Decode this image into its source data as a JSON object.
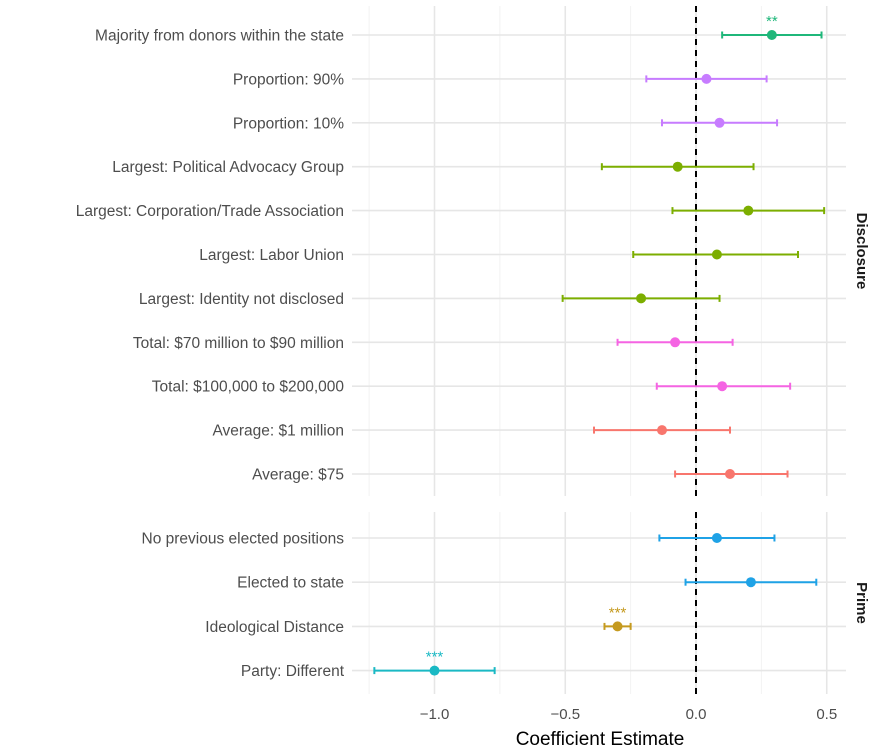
{
  "chart_data": {
    "type": "scatter",
    "subtype": "coefficient-plot",
    "xlabel": "Coefficient Estimate",
    "xlim": [
      -1.25,
      0.52
    ],
    "x_ticks": [
      -1.0,
      -0.5,
      0.0,
      0.5
    ],
    "x_tick_labels": [
      "−1.0",
      "−0.5",
      "0.0",
      "0.5"
    ],
    "reference_line": 0.0,
    "grid": true,
    "panels": [
      {
        "name": "Disclosure",
        "rows": [
          {
            "label": "Majority from donors within the state",
            "estimate": 0.29,
            "ci": [
              0.1,
              0.48
            ],
            "color": "#1fb77a",
            "sig": "**"
          },
          {
            "label": "Proportion: 90%",
            "estimate": 0.04,
            "ci": [
              -0.19,
              0.27
            ],
            "color": "#c77cff",
            "sig": ""
          },
          {
            "label": "Proportion: 10%",
            "estimate": 0.09,
            "ci": [
              -0.13,
              0.31
            ],
            "color": "#c77cff",
            "sig": ""
          },
          {
            "label": "Largest: Political Advocacy Group",
            "estimate": -0.07,
            "ci": [
              -0.36,
              0.22
            ],
            "color": "#7cae00",
            "sig": ""
          },
          {
            "label": "Largest: Corporation/Trade Association",
            "estimate": 0.2,
            "ci": [
              -0.09,
              0.49
            ],
            "color": "#7cae00",
            "sig": ""
          },
          {
            "label": "Largest: Labor Union",
            "estimate": 0.08,
            "ci": [
              -0.24,
              0.39
            ],
            "color": "#7cae00",
            "sig": ""
          },
          {
            "label": "Largest: Identity not disclosed",
            "estimate": -0.21,
            "ci": [
              -0.51,
              0.09
            ],
            "color": "#7cae00",
            "sig": ""
          },
          {
            "label": "Total: $70 million to $90 million",
            "estimate": -0.08,
            "ci": [
              -0.3,
              0.14
            ],
            "color": "#f564e3",
            "sig": ""
          },
          {
            "label": "Total: $100,000 to $200,000",
            "estimate": 0.1,
            "ci": [
              -0.15,
              0.36
            ],
            "color": "#f564e3",
            "sig": ""
          },
          {
            "label": "Average: $1 million",
            "estimate": -0.13,
            "ci": [
              -0.39,
              0.13
            ],
            "color": "#f8766d",
            "sig": ""
          },
          {
            "label": "Average: $75",
            "estimate": 0.13,
            "ci": [
              -0.08,
              0.35
            ],
            "color": "#f8766d",
            "sig": ""
          }
        ]
      },
      {
        "name": "Prime",
        "rows": [
          {
            "label": "No previous elected positions",
            "estimate": 0.08,
            "ci": [
              -0.14,
              0.3
            ],
            "color": "#1fa2e6",
            "sig": ""
          },
          {
            "label": "Elected to state ",
            "estimate": 0.21,
            "ci": [
              -0.04,
              0.46
            ],
            "color": "#1fa2e6",
            "sig": ""
          },
          {
            "label": "Ideological Distance",
            "estimate": -0.3,
            "ci": [
              -0.35,
              -0.25
            ],
            "color": "#c59a1f",
            "sig": "***"
          },
          {
            "label": "Party: Different",
            "estimate": -1.0,
            "ci": [
              -1.23,
              -0.77
            ],
            "color": "#1ab9c4",
            "sig": "***"
          }
        ]
      }
    ]
  }
}
